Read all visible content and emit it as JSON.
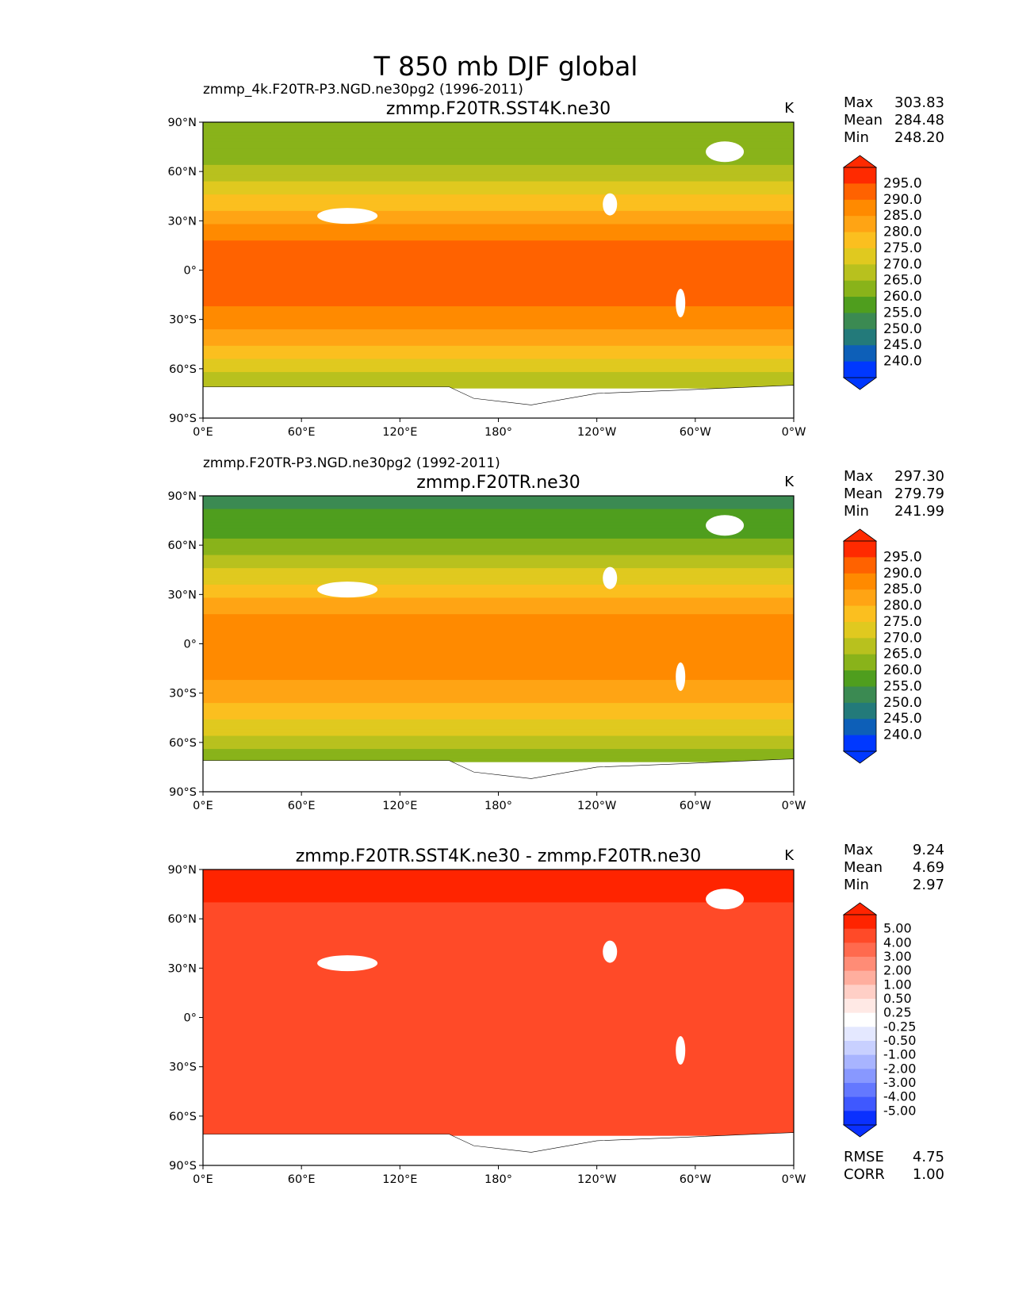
{
  "chart_data": {
    "type": "heatmap",
    "title": "T 850 mb DJF global",
    "units": "K",
    "lat_ticks": [
      "90°N",
      "60°N",
      "30°N",
      "0°",
      "30°S",
      "60°S",
      "90°S"
    ],
    "lon_ticks": [
      "0°E",
      "60°E",
      "120°E",
      "180°",
      "120°W",
      "60°W",
      "0°W"
    ],
    "panels": [
      {
        "left_title": "zmmp_4k.F20TR-P3.NGD.ne30pg2 (1996-2011)",
        "center_title": "zmmp.F20TR.SST4K.ne30",
        "units": "K",
        "stats": [
          {
            "label": "Max",
            "value": "303.83"
          },
          {
            "label": "Mean",
            "value": "284.48"
          },
          {
            "label": "Min",
            "value": "248.20"
          }
        ],
        "levels": [
          "295.0",
          "290.0",
          "285.0",
          "280.0",
          "275.0",
          "270.0",
          "265.0",
          "260.0",
          "255.0",
          "250.0",
          "245.0",
          "240.0"
        ],
        "colors": [
          "#ff2a00",
          "#ff6200",
          "#ff8a00",
          "#ffa414",
          "#fbbf1f",
          "#e0c91f",
          "#b8c11e",
          "#89b31a",
          "#4f9e1e",
          "#3b8a52",
          "#237a7a",
          "#0d5fb8",
          "#0038ff"
        ],
        "zonal_mean_approx": {
          "lat": [
            90,
            75,
            60,
            45,
            30,
            15,
            0,
            -15,
            -30,
            -45,
            -60,
            -72
          ],
          "value": [
            261,
            262,
            266,
            275,
            284,
            291,
            293,
            292,
            288,
            280,
            271,
            266
          ]
        }
      },
      {
        "left_title": "zmmp.F20TR-P3.NGD.ne30pg2 (1992-2011)",
        "center_title": "zmmp.F20TR.ne30",
        "units": "K",
        "stats": [
          {
            "label": "Max",
            "value": "297.30"
          },
          {
            "label": "Mean",
            "value": "279.79"
          },
          {
            "label": "Min",
            "value": "241.99"
          }
        ],
        "levels": [
          "295.0",
          "290.0",
          "285.0",
          "280.0",
          "275.0",
          "270.0",
          "265.0",
          "260.0",
          "255.0",
          "250.0",
          "245.0",
          "240.0"
        ],
        "colors": [
          "#ff2a00",
          "#ff6200",
          "#ff8a00",
          "#ffa414",
          "#fbbf1f",
          "#e0c91f",
          "#b8c11e",
          "#89b31a",
          "#4f9e1e",
          "#3b8a52",
          "#237a7a",
          "#0d5fb8",
          "#0038ff"
        ],
        "zonal_mean_approx": {
          "lat": [
            90,
            75,
            60,
            45,
            30,
            15,
            0,
            -15,
            -30,
            -45,
            -60,
            -72
          ],
          "value": [
            254,
            256,
            261,
            270,
            279,
            286,
            288,
            287,
            283,
            276,
            267,
            262
          ]
        }
      },
      {
        "left_title": "",
        "center_title": "zmmp.F20TR.SST4K.ne30 - zmmp.F20TR.ne30",
        "units": "K",
        "stats": [
          {
            "label": "Max",
            "value": "9.24"
          },
          {
            "label": "Mean",
            "value": "4.69"
          },
          {
            "label": "Min",
            "value": "2.97"
          }
        ],
        "levels": [
          "5.00",
          "4.00",
          "3.00",
          "2.00",
          "1.00",
          "0.50",
          "0.25",
          "-0.25",
          "-0.50",
          "-1.00",
          "-2.00",
          "-3.00",
          "-4.00",
          "-5.00"
        ],
        "colors": [
          "#ff2400",
          "#ff4a28",
          "#ff6a4e",
          "#ff8c76",
          "#ffae9e",
          "#ffcfc6",
          "#ffe9e5",
          "#ffffff",
          "#e4e8ff",
          "#c8d0ff",
          "#a8b4ff",
          "#8898ff",
          "#6478ff",
          "#3f58ff",
          "#0a30ff"
        ],
        "zonal_mean_approx": {
          "lat": [
            90,
            75,
            60,
            45,
            30,
            15,
            0,
            -15,
            -30,
            -45,
            -60,
            -72
          ],
          "value": [
            5.4,
            5.2,
            4.6,
            4.5,
            4.3,
            4.5,
            4.4,
            4.5,
            4.6,
            4.5,
            4.4,
            4.3
          ]
        },
        "rmse": {
          "label": "RMSE",
          "value": "4.75"
        },
        "corr": {
          "label": "CORR",
          "value": "1.00"
        }
      }
    ]
  }
}
